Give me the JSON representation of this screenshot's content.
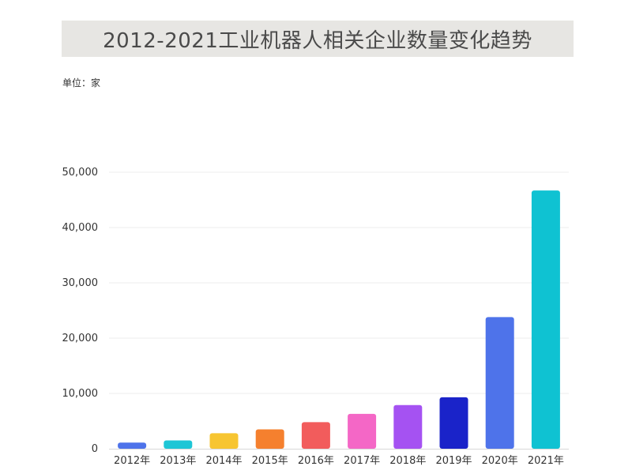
{
  "title": "2012-2021工业机器人相关企业数量变化趋势",
  "unit_label": "单位：家",
  "chart_data": {
    "type": "bar",
    "title": "2012-2021工业机器人相关企业数量变化趋势",
    "categories": [
      "2012年",
      "2013年",
      "2014年",
      "2015年",
      "2016年",
      "2017年",
      "2018年",
      "2019年",
      "2020年",
      "2021年"
    ],
    "values": [
      1100,
      1500,
      2800,
      3500,
      4800,
      6300,
      7900,
      9300,
      23800,
      46700
    ],
    "colors": [
      "#4e73ea",
      "#1ec6d6",
      "#f7c531",
      "#f5802e",
      "#f25c5c",
      "#f467c6",
      "#a552f2",
      "#1a23c9",
      "#4e73ea",
      "#0fc2d2"
    ],
    "ylabel": "单位：家",
    "ylim": [
      0,
      50000
    ],
    "yticks": [
      0,
      10000,
      20000,
      30000,
      40000,
      50000
    ],
    "ytick_labels": [
      "0",
      "10,000",
      "20,000",
      "30,000",
      "40,000",
      "50,000"
    ],
    "grid": true,
    "legend": false
  }
}
